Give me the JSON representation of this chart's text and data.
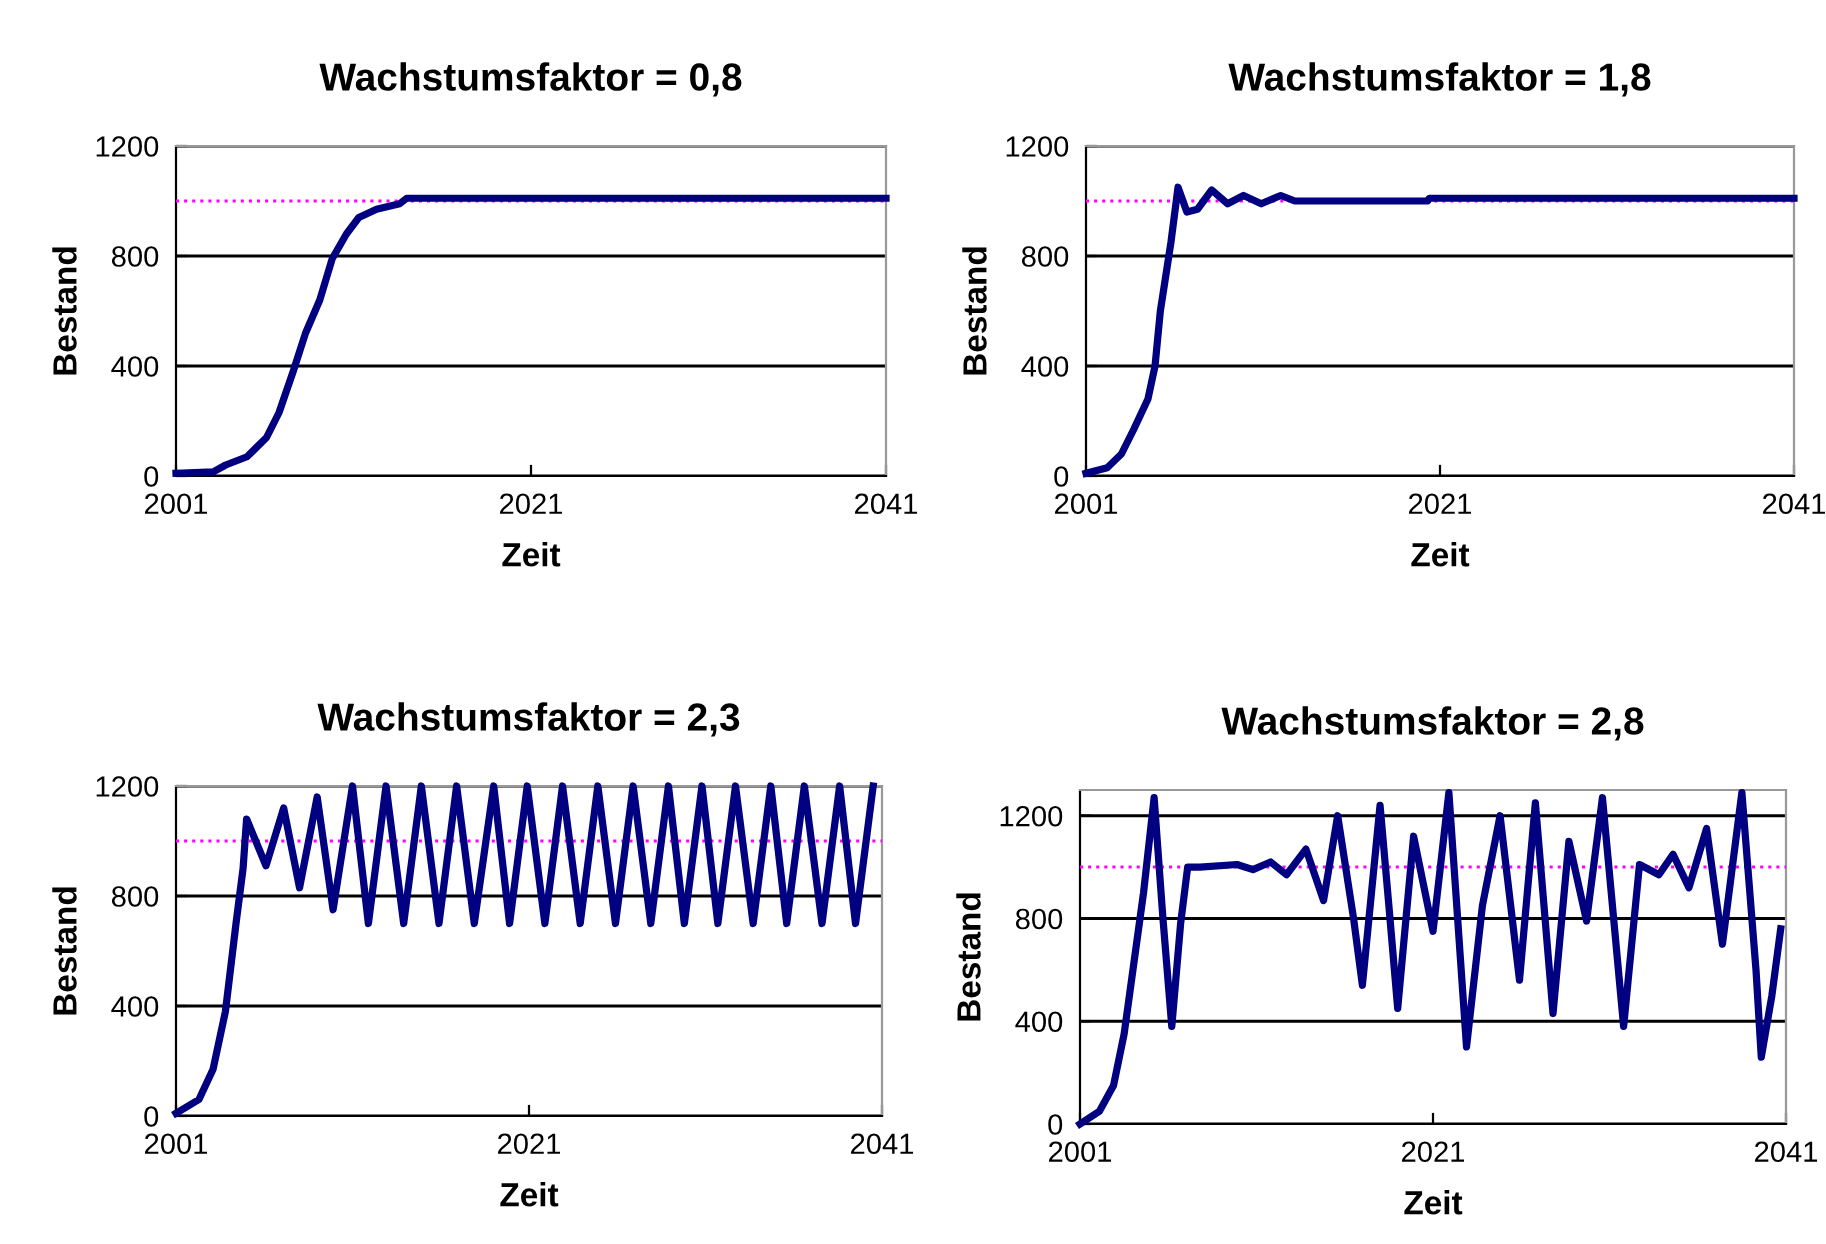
{
  "chart_data": [
    {
      "type": "line",
      "title": "Wachstumsfaktor = 0,8",
      "xlabel": "Zeit",
      "ylabel": "Bestand",
      "xlim": [
        2001,
        2041
      ],
      "xticks": [
        2001,
        2021,
        2041
      ],
      "ylim": [
        0,
        1200
      ],
      "yticks": [
        0,
        400,
        800,
        1200
      ],
      "grid": "y",
      "marker": "none",
      "line_style": "solid",
      "ref_lines": [
        {
          "axis": "y",
          "value": 1000,
          "color": "#ff00ff",
          "line_style": "dotted"
        }
      ],
      "series": [
        {
          "color": "#000080",
          "x": [
            2001,
            2003.1,
            2003.8,
            2005,
            2006.1,
            2006.8,
            2007.6,
            2008.3,
            2009.1,
            2009.8,
            2010.6,
            2011.3,
            2012.3,
            2013.6,
            2014,
            2041
          ],
          "values": [
            10,
            15,
            40,
            70,
            140,
            230,
            380,
            520,
            640,
            790,
            880,
            940,
            970,
            990,
            1010,
            1010
          ]
        }
      ]
    },
    {
      "type": "line",
      "title": "Wachstumsfaktor = 1,8",
      "xlabel": "Zeit",
      "ylabel": "Bestand",
      "xlim": [
        2001,
        2041
      ],
      "xticks": [
        2001,
        2021,
        2041
      ],
      "ylim": [
        0,
        1200
      ],
      "yticks": [
        0,
        400,
        800,
        1200
      ],
      "grid": "y",
      "marker": "none",
      "line_style": "solid",
      "ref_lines": [
        {
          "axis": "y",
          "value": 1000,
          "color": "#ff00ff",
          "line_style": "dotted"
        }
      ],
      "series": [
        {
          "color": "#000080",
          "x": [
            2001,
            2002.2,
            2003,
            2003.7,
            2004.5,
            2004.9,
            2005.2,
            2005.8,
            2006.2,
            2006.7,
            2007.3,
            2008.1,
            2009,
            2009.9,
            2010.9,
            2012,
            2012.8,
            2020.3,
            2020.4,
            2041
          ],
          "values": [
            10,
            30,
            80,
            170,
            280,
            400,
            600,
            850,
            1050,
            960,
            970,
            1040,
            990,
            1020,
            990,
            1020,
            1000,
            1000,
            1010,
            1010
          ]
        }
      ]
    },
    {
      "type": "line",
      "title": "Wachstumsfaktor = 2,3",
      "xlabel": "Zeit",
      "ylabel": "Bestand",
      "xlim": [
        2001,
        2041
      ],
      "xticks": [
        2001,
        2021,
        2041
      ],
      "ylim": [
        0,
        1200
      ],
      "yticks": [
        0,
        400,
        800,
        1200
      ],
      "grid": "y",
      "marker": "none",
      "line_style": "solid",
      "ref_lines": [
        {
          "axis": "y",
          "value": 1000,
          "color": "#ff00ff",
          "line_style": "dotted"
        }
      ],
      "series": [
        {
          "color": "#000080",
          "x": [
            2001,
            2002.3,
            2003.1,
            2003.8,
            2004.4,
            2004.8,
            2005,
            2006.1,
            2007.1,
            2008,
            2009,
            2009.9,
            2011,
            2011.9,
            2012.9,
            2013.9,
            2014.9,
            2015.9,
            2016.9,
            2017.9,
            2019,
            2019.9,
            2020.9,
            2021.9,
            2022.9,
            2023.9,
            2024.9,
            2025.9,
            2026.9,
            2027.9,
            2028.9,
            2029.8,
            2030.8,
            2031.7,
            2032.7,
            2033.7,
            2034.7,
            2035.6,
            2036.6,
            2037.6,
            2038.6,
            2039.5,
            2040.5
          ],
          "values": [
            10,
            60,
            170,
            380,
            700,
            900,
            1080,
            910,
            1120,
            830,
            1160,
            750,
            1200,
            700,
            1200,
            700,
            1200,
            700,
            1200,
            700,
            1200,
            700,
            1200,
            700,
            1200,
            700,
            1200,
            700,
            1200,
            700,
            1200,
            700,
            1200,
            700,
            1200,
            700,
            1200,
            700,
            1200,
            700,
            1200,
            700,
            1200
          ]
        }
      ]
    },
    {
      "type": "line",
      "title": "Wachstumsfaktor = 2,8",
      "xlabel": "Zeit",
      "ylabel": "Bestand",
      "xlim": [
        2001,
        2041
      ],
      "xticks": [
        2001,
        2021,
        2041
      ],
      "ylim": [
        0,
        1300
      ],
      "yticks": [
        0,
        400,
        800,
        1200
      ],
      "grid": "y",
      "marker": "none",
      "line_style": "solid",
      "ref_lines": [
        {
          "axis": "y",
          "value": 1000,
          "color": "#ff00ff",
          "line_style": "dotted"
        }
      ],
      "series": [
        {
          "color": "#000080",
          "x": [
            2001,
            2002.1,
            2002.9,
            2003.5,
            2004,
            2004.6,
            2005.2,
            2005.7,
            2006.2,
            2006.7,
            2007.1,
            2007.8,
            2009.9,
            2010.8,
            2011.8,
            2012.7,
            2013.8,
            2014.8,
            2015.6,
            2016.5,
            2017,
            2018,
            2018.5,
            2019,
            2019.9,
            2021,
            2021.9,
            2022.9,
            2023.8,
            2024.8,
            2025.9,
            2026.8,
            2027.8,
            2028.7,
            2029.7,
            2030.6,
            2031.8,
            2032.7,
            2033.8,
            2034.6,
            2035.5,
            2036.5,
            2037.4,
            2038.5,
            2039.3,
            2039.6,
            2040.2,
            2040.7
          ],
          "values": [
            0,
            50,
            150,
            350,
            600,
            900,
            1270,
            800,
            380,
            780,
            1000,
            1000,
            1010,
            990,
            1020,
            970,
            1070,
            870,
            1200,
            800,
            540,
            1240,
            850,
            450,
            1120,
            750,
            1290,
            300,
            850,
            1200,
            560,
            1250,
            430,
            1100,
            790,
            1270,
            380,
            1010,
            970,
            1050,
            920,
            1150,
            700,
            1290,
            600,
            260,
            500,
            760
          ]
        }
      ]
    }
  ]
}
